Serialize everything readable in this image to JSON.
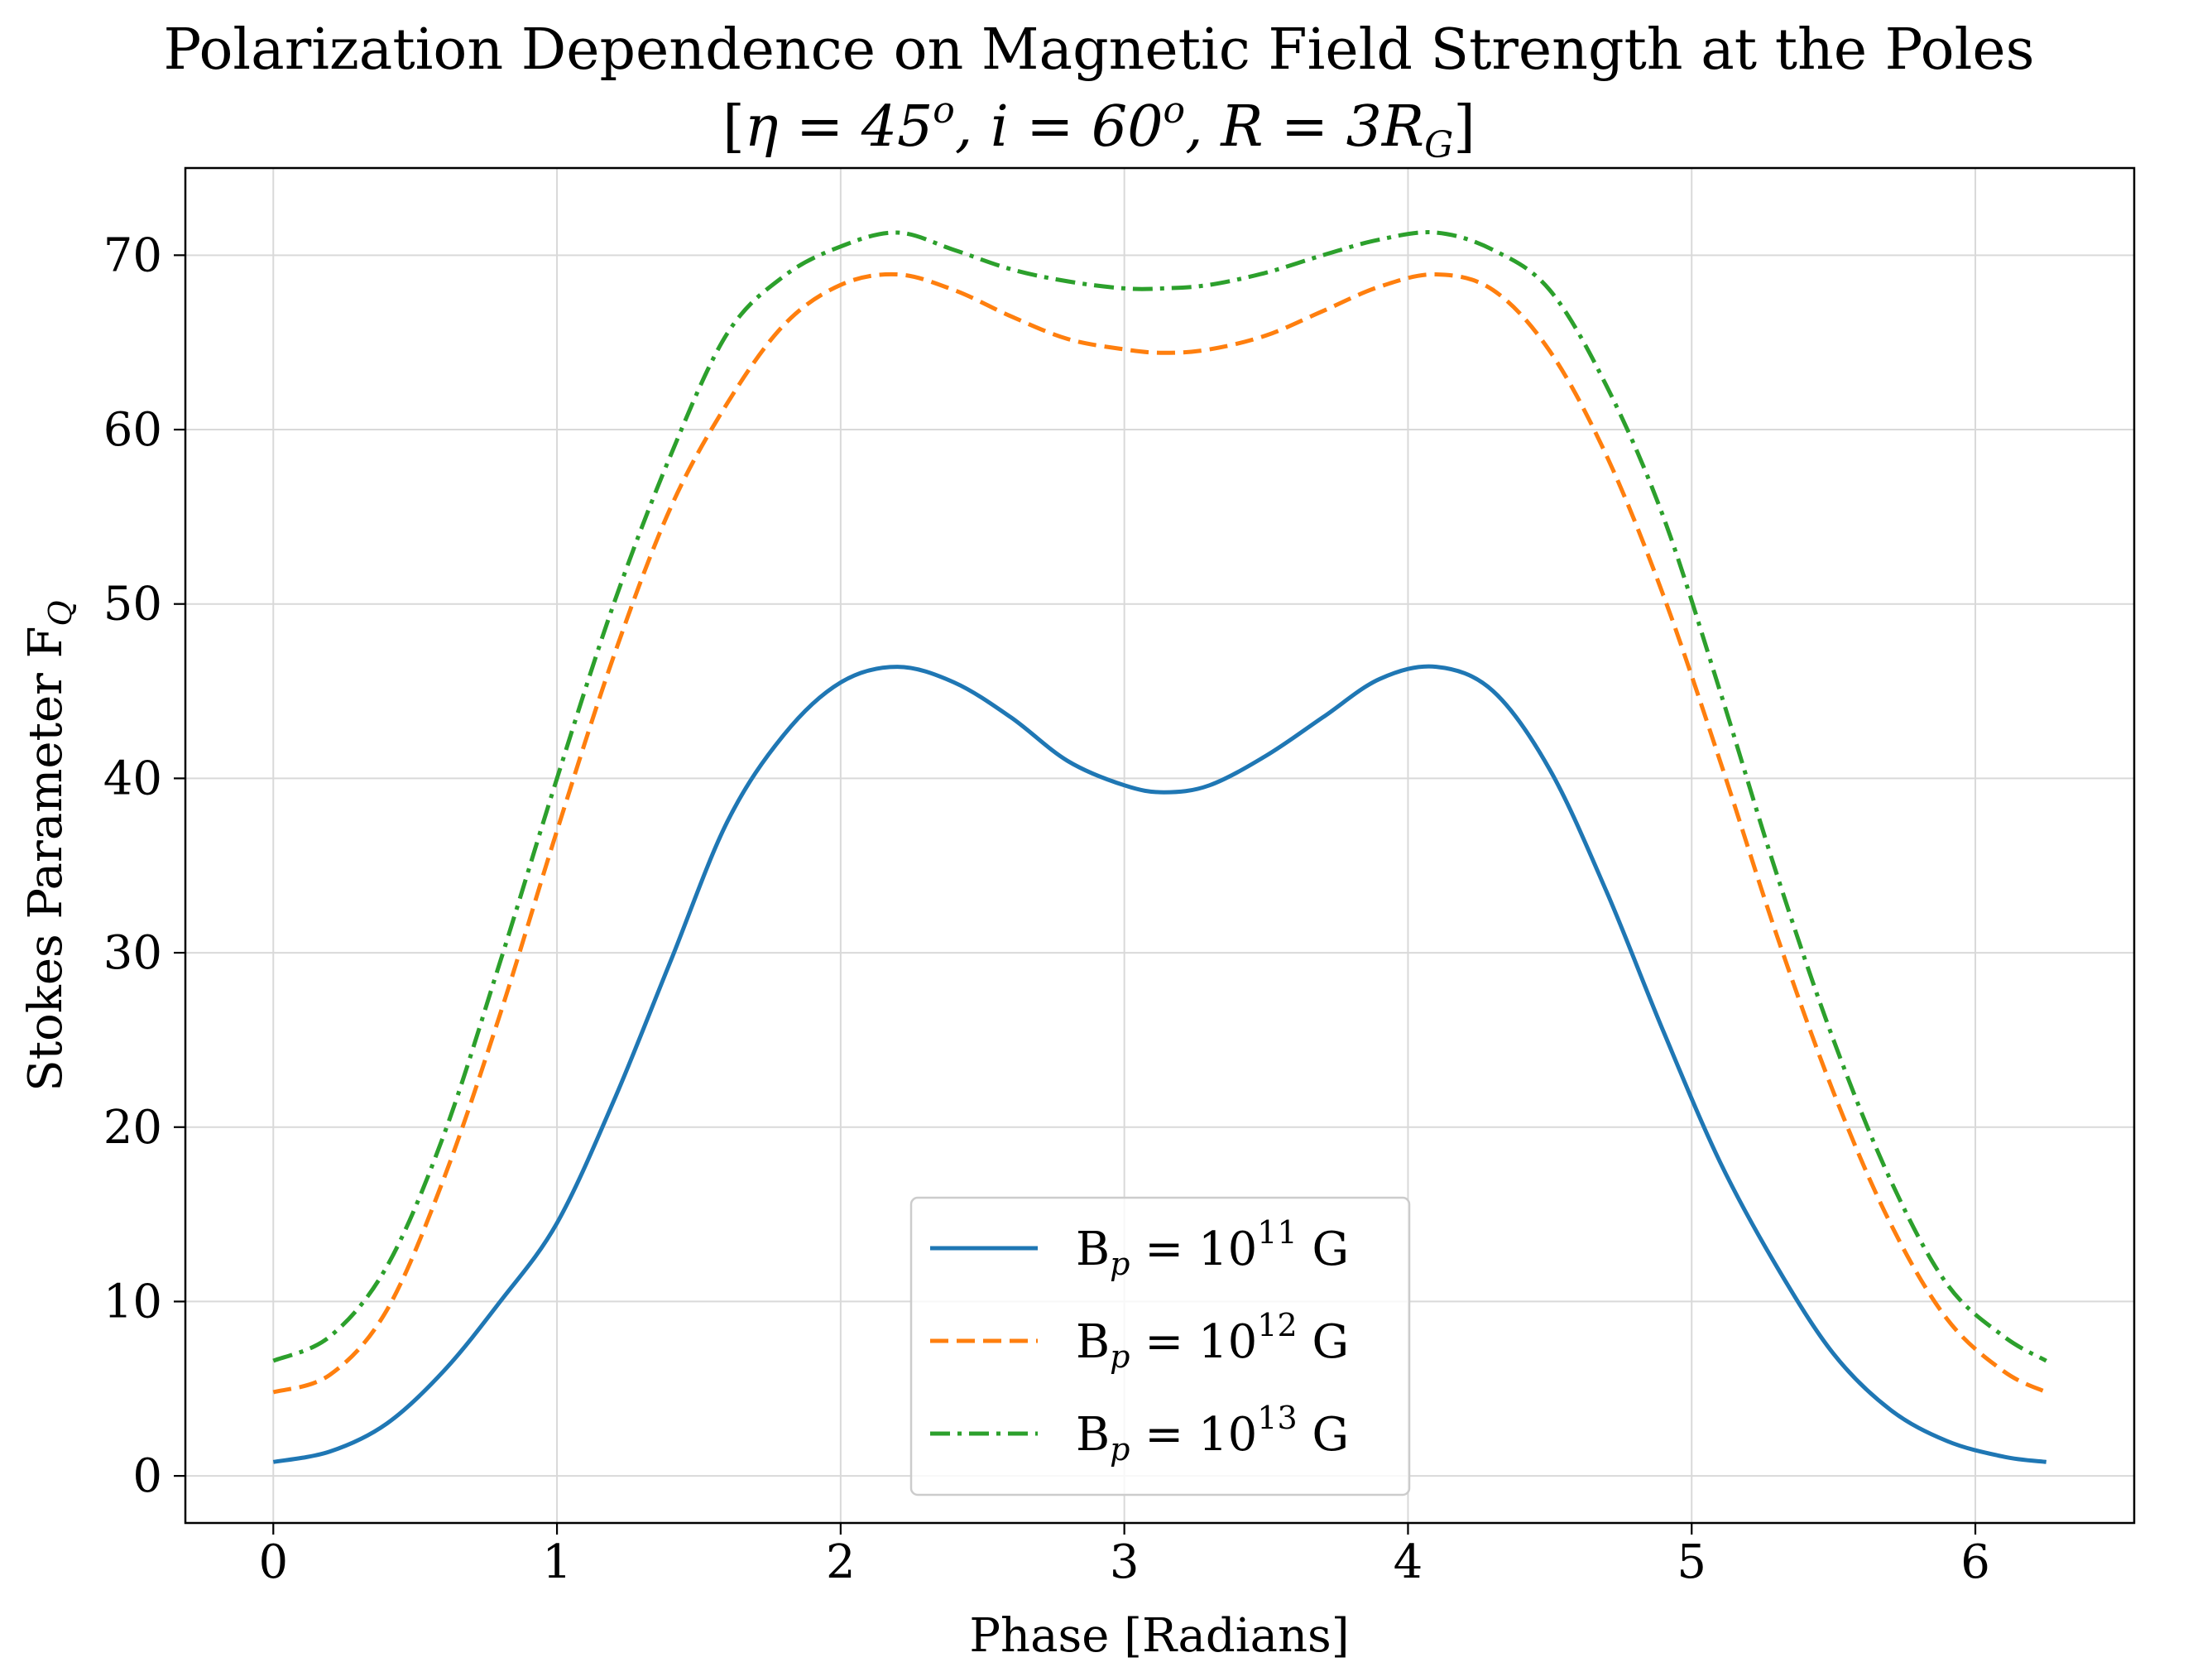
{
  "chart_data": {
    "type": "line",
    "title_line1": "Polarization Dependence on Magnetic Field Strength at the Poles",
    "title_line2": {
      "open": "[",
      "eta_label": "η = 45",
      "eta_sup": "o",
      "i_label": ", i = 60",
      "i_sup": "o",
      "r_label": ", R = 3R",
      "r_sub": "G",
      "close": "]"
    },
    "xlabel": "Phase [Radians]",
    "ylabel": {
      "text": "Stokes Parameter F",
      "sub": "Q"
    },
    "xlim": [
      -0.31,
      6.56
    ],
    "ylim": [
      -2.7,
      75
    ],
    "x_ticks": [
      "0",
      "1",
      "2",
      "3",
      "4",
      "5",
      "6"
    ],
    "y_ticks": [
      "0",
      "10",
      "20",
      "30",
      "40",
      "50",
      "60",
      "70"
    ],
    "grid": true,
    "legend_position": "lower-center",
    "x": [
      0,
      0.2,
      0.4,
      0.6,
      0.8,
      1.0,
      1.2,
      1.4,
      1.6,
      1.8,
      2.0,
      2.2,
      2.4,
      2.6,
      2.8,
      3.0,
      3.14,
      3.3,
      3.5,
      3.7,
      3.9,
      4.1,
      4.3,
      4.5,
      4.7,
      4.9,
      5.1,
      5.3,
      5.5,
      5.7,
      5.9,
      6.1,
      6.25
    ],
    "series": [
      {
        "name_main": "B",
        "name_sub": "p",
        "name_mid": " = 10",
        "name_sup": "11",
        "name_end": " G",
        "color": "#1f77b4",
        "dash": "solid",
        "values": [
          0.8,
          1.4,
          3.0,
          6.0,
          10.0,
          14.5,
          21.5,
          29.5,
          37.5,
          42.5,
          45.5,
          46.4,
          45.5,
          43.5,
          41.0,
          39.6,
          39.2,
          39.6,
          41.3,
          43.5,
          45.7,
          46.4,
          45.0,
          40.5,
          33.5,
          25.5,
          18.0,
          12.0,
          7.0,
          3.8,
          2.0,
          1.1,
          0.8
        ]
      },
      {
        "name_main": "B",
        "name_sub": "p",
        "name_mid": " = 10",
        "name_sup": "12",
        "name_end": " G",
        "color": "#ff7f0e",
        "dash": "dashed",
        "values": [
          4.8,
          5.8,
          9.5,
          17.0,
          26.5,
          37.0,
          47.0,
          55.5,
          61.5,
          66.0,
          68.3,
          68.9,
          68.0,
          66.5,
          65.2,
          64.6,
          64.4,
          64.6,
          65.4,
          66.8,
          68.2,
          68.9,
          68.0,
          64.5,
          58.5,
          50.5,
          41.0,
          31.0,
          22.0,
          14.5,
          9.0,
          6.0,
          4.8
        ]
      },
      {
        "name_main": "B",
        "name_sub": "p",
        "name_mid": " = 10",
        "name_sup": "13",
        "name_end": " G",
        "color": "#2ca02c",
        "dash": "dashdot",
        "values": [
          6.6,
          8.0,
          12.0,
          19.5,
          29.5,
          40.0,
          50.0,
          58.5,
          65.5,
          68.8,
          70.5,
          71.3,
          70.3,
          69.2,
          68.5,
          68.1,
          68.1,
          68.3,
          69.0,
          70.0,
          70.9,
          71.3,
          70.3,
          68.0,
          62.5,
          55.0,
          45.0,
          34.5,
          25.0,
          17.0,
          11.0,
          8.0,
          6.6
        ]
      }
    ]
  }
}
